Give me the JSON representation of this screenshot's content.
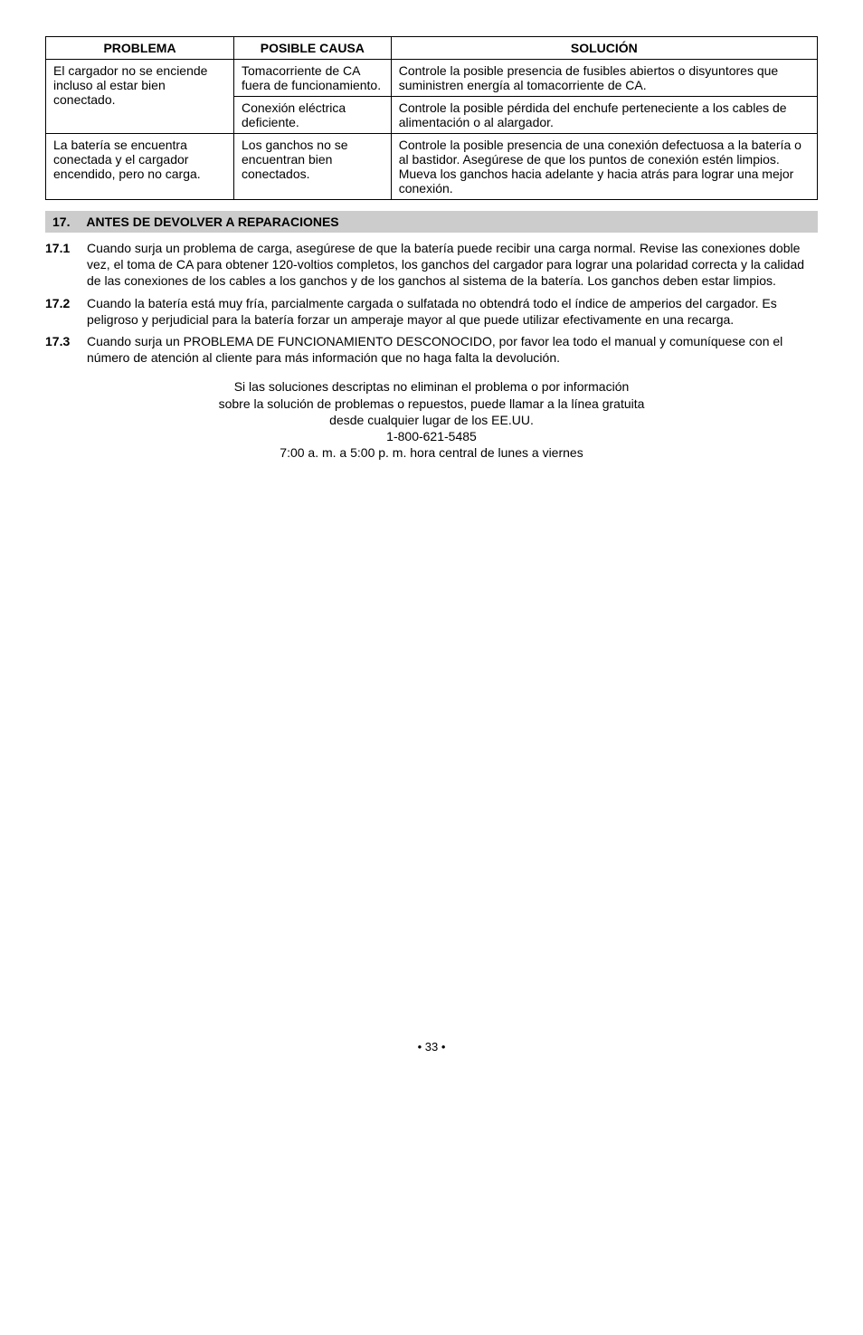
{
  "table": {
    "headers": [
      "PROBLEMA",
      "POSIBLE CAUSA",
      "SOLUCIÓN"
    ],
    "rows": [
      {
        "problema": "El cargador no se enciende incluso al estar bien conectado.",
        "causa1": "Tomacorriente de CA fuera de funcionamiento.",
        "solucion1": "Controle la posible presencia de fusibles abiertos o disyuntores que suministren energía al tomacorriente de CA.",
        "causa2": "Conexión eléctrica deficiente.",
        "solucion2": "Controle la posible pérdida del enchufe perteneciente a los cables de alimentación o al alargador."
      },
      {
        "problema": "La batería se encuentra conectada y el cargador encendido, pero no carga.",
        "causa": "Los ganchos no se encuentran bien conectados.",
        "solucion": "Controle la posible presencia de una conexión defectuosa a la batería o al bastidor. Asegúrese de que los puntos de conexión estén limpios. Mueva los ganchos hacia adelante y hacia atrás para lograr una mejor conexión."
      }
    ]
  },
  "section": {
    "num": "17.",
    "title": "ANTES DE DEVOLVER A REPARACIONES"
  },
  "items": [
    {
      "num": "17.1",
      "text": "Cuando surja un problema de carga, asegúrese de que la batería puede recibir una carga normal. Revise las conexiones doble vez, el toma de CA para obtener 120-voltios completos, los ganchos del cargador para lograr una polaridad correcta y la calidad de las conexiones de los cables a los ganchos y de los ganchos al sistema de la batería. Los ganchos deben estar limpios."
    },
    {
      "num": "17.2",
      "text": "Cuando la batería está muy fría, parcialmente cargada o sulfatada no obtendrá todo el índice de amperios del cargador. Es peligroso y perjudicial para la batería forzar un amperaje mayor al que puede utilizar efectivamente en una recarga."
    },
    {
      "num": "17.3",
      "text": "Cuando surja un PROBLEMA DE FUNCIONAMIENTO DESCONOCIDO, por favor lea todo el manual y comuníquese con el número de atención al cliente para más información que no haga falta la devolución."
    }
  ],
  "center": {
    "line1": "Si las soluciones descriptas no eliminan el problema o por información",
    "line2": "sobre la solución de problemas o repuestos, puede llamar a la línea gratuita",
    "line3": "desde cualquier lugar de los EE.UU.",
    "line4": "1-800-621-5485",
    "line5": "7:00 a. m. a 5:00 p. m. hora central de lunes a viernes"
  },
  "pagenum": "• 33 •"
}
